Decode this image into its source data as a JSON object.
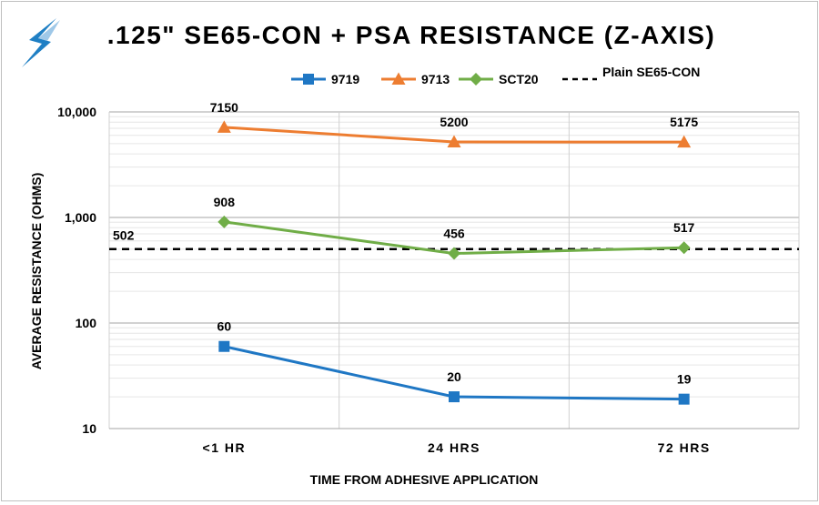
{
  "chart_data": {
    "type": "line",
    "title": ".125\" SE65-CON + PSA RESISTANCE (Z-AXIS)",
    "xlabel": "TIME FROM ADHESIVE APPLICATION",
    "ylabel": "AVERAGE RESISTANCE (OHMS)",
    "categories": [
      "<1 HR",
      "24 HRS",
      "72 HRS"
    ],
    "y_scale": "log",
    "ylim": [
      10,
      10000
    ],
    "y_ticks": [
      10,
      100,
      1000,
      10000
    ],
    "y_tick_labels": [
      "10",
      "100",
      "1,000",
      "10,000"
    ],
    "grid": true,
    "legend_position": "top",
    "series": [
      {
        "name": "9719",
        "values": [
          60,
          20,
          19
        ],
        "labels": [
          "60",
          "20",
          "19"
        ],
        "color": "#1f77c4",
        "marker": "square"
      },
      {
        "name": "9713",
        "values": [
          7150,
          5200,
          5175
        ],
        "labels": [
          "7150",
          "5200",
          "5175"
        ],
        "color": "#ed7d31",
        "marker": "triangle"
      },
      {
        "name": "SCT20",
        "values": [
          908,
          456,
          517
        ],
        "labels": [
          "908",
          "456",
          "517"
        ],
        "color": "#70ad47",
        "marker": "diamond"
      }
    ],
    "reference_line": {
      "name": "Plain SE65-CON",
      "value": 502,
      "label": "502",
      "color": "#000000",
      "style": "dashed"
    }
  }
}
